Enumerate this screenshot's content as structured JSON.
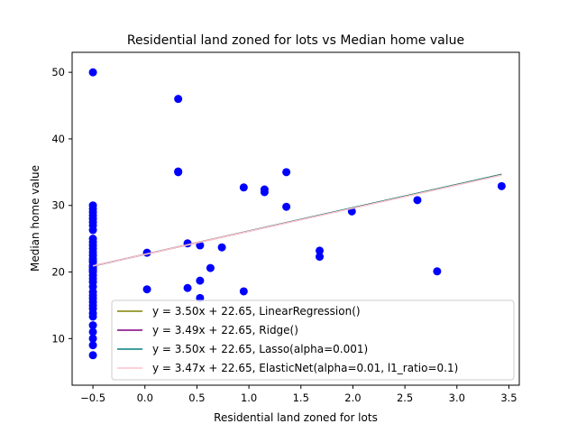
{
  "chart_data": {
    "type": "scatter",
    "title": "Residential land zoned for lots vs Median home value",
    "xlabel": "Residential land zoned for lots",
    "ylabel": "Median home value",
    "xlim": [
      -0.7,
      3.6
    ],
    "ylim": [
      3,
      53
    ],
    "xticks": [
      -0.5,
      0.0,
      0.5,
      1.0,
      1.5,
      2.0,
      2.5,
      3.0,
      3.5
    ],
    "xtick_labels": [
      "−0.5",
      "0.0",
      "0.5",
      "1.0",
      "1.5",
      "2.0",
      "2.5",
      "3.0",
      "3.5"
    ],
    "yticks": [
      10,
      20,
      30,
      40,
      50
    ],
    "ytick_labels": [
      "10",
      "20",
      "30",
      "40",
      "50"
    ],
    "grid": false,
    "legend_position": "lower-right",
    "points": {
      "color": "#0000ff",
      "x": [
        -0.5,
        -0.5,
        -0.5,
        -0.5,
        -0.5,
        -0.5,
        -0.5,
        -0.5,
        -0.5,
        -0.5,
        -0.5,
        -0.5,
        -0.5,
        -0.5,
        -0.5,
        -0.5,
        -0.5,
        -0.5,
        -0.5,
        -0.5,
        -0.5,
        -0.5,
        -0.5,
        -0.5,
        -0.5,
        -0.5,
        -0.5,
        -0.5,
        -0.5,
        -0.5,
        -0.5,
        -0.5,
        -0.5,
        -0.5,
        -0.5,
        -0.5,
        -0.5,
        -0.5,
        -0.5,
        -0.5,
        0.02,
        0.02,
        0.32,
        0.32,
        0.32,
        0.41,
        0.41,
        0.53,
        0.53,
        0.53,
        0.63,
        0.74,
        0.95,
        0.95,
        1.15,
        1.15,
        1.36,
        1.36,
        1.68,
        1.68,
        1.99,
        2.62,
        2.81,
        3.43
      ],
      "y": [
        50.0,
        30.0,
        29.5,
        29.0,
        28.5,
        28.0,
        27.5,
        27.0,
        26.3,
        25.0,
        24.5,
        24.0,
        23.5,
        23.0,
        22.5,
        22.0,
        21.7,
        21.5,
        21.0,
        20.8,
        20.5,
        20.2,
        20.0,
        19.5,
        19.0,
        18.5,
        17.8,
        17.0,
        16.5,
        16.0,
        15.5,
        15.0,
        14.5,
        13.8,
        13.3,
        12.0,
        11.0,
        10.0,
        9.0,
        7.5,
        22.9,
        17.4,
        46.0,
        35.1,
        35.0,
        24.3,
        17.6,
        24.0,
        18.7,
        16.1,
        20.6,
        23.7,
        32.7,
        17.1,
        32.4,
        32.0,
        35.0,
        29.8,
        23.2,
        22.3,
        29.1,
        30.8,
        20.1,
        32.9
      ]
    },
    "series": [
      {
        "name": "y = 3.50x + 22.65, LinearRegression()",
        "slope": 3.5,
        "intercept": 22.65,
        "x_range": [
          -0.5,
          3.43
        ],
        "color": "#808000"
      },
      {
        "name": "y = 3.49x + 22.65, Ridge()",
        "slope": 3.49,
        "intercept": 22.65,
        "x_range": [
          -0.5,
          3.43
        ],
        "color": "#800080"
      },
      {
        "name": "y = 3.50x + 22.65, Lasso(alpha=0.001)",
        "slope": 3.5,
        "intercept": 22.65,
        "x_range": [
          -0.5,
          3.43
        ],
        "color": "#008080"
      },
      {
        "name": "y = 3.47x + 22.65, ElasticNet(alpha=0.01, l1_ratio=0.1)",
        "slope": 3.47,
        "intercept": 22.65,
        "x_range": [
          -0.5,
          3.43
        ],
        "color": "#ffc0cb"
      }
    ]
  }
}
